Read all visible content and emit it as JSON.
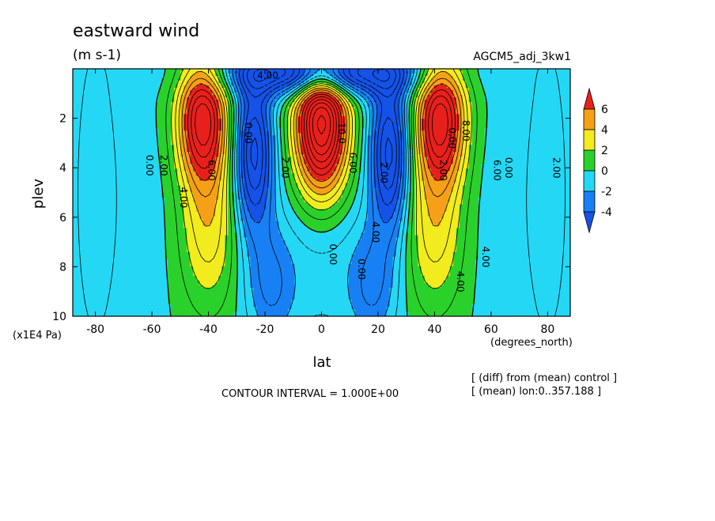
{
  "chart_data": {
    "type": "heatmap",
    "title": "eastward wind",
    "units": "(m s-1)",
    "run_label": "AGCM5_adj_3kw1",
    "xlabel": "lat",
    "xunits": "(degrees_north)",
    "ylabel": "plev",
    "yunits": "(x1E4 Pa)",
    "xlim": [
      -88,
      88
    ],
    "ylim": [
      10,
      0
    ],
    "x_ticks": [
      "-80",
      "-60",
      "-40",
      "-20",
      "0",
      "20",
      "40",
      "60",
      "80"
    ],
    "y_ticks": [
      "2",
      "4",
      "6",
      "8",
      "10"
    ],
    "colorbar": {
      "levels": [
        "6",
        "4",
        "2",
        "0",
        "-2",
        "-4"
      ],
      "colors": [
        "#e8201c",
        "#f5a016",
        "#f2ec1e",
        "#2bd12b",
        "#24d8f5",
        "#1880f5",
        "#1552e8"
      ]
    },
    "contour_interval_text": "CONTOUR INTERVAL = 1.000E+00",
    "notes": [
      "[ (diff) from (mean) control ]",
      "[ (mean) lon:0..357.188 ]"
    ],
    "contour_labels": [
      "0.00",
      "2.00",
      "4.00",
      "6.00",
      "0.00",
      "2.00",
      "4.00",
      "6.00",
      "0.00",
      "2.00",
      "4.00",
      "0.00",
      "2.00",
      "4.00",
      "6.00",
      "8.00",
      "0.00",
      "10.0",
      "0.00",
      "2.00",
      "4.00"
    ],
    "features": [
      {
        "name": "subtropical jet core south",
        "lat": -42,
        "plev": 2.0,
        "value": 9
      },
      {
        "name": "subtropical jet core north",
        "lat": 42,
        "plev": 2.0,
        "value": 9
      },
      {
        "name": "equatorial westerly core",
        "lat": 0,
        "plev": 2.2,
        "value": 12
      },
      {
        "name": "easterly band south",
        "lat": -24,
        "plev": 3.2,
        "value": -7
      },
      {
        "name": "easterly band north",
        "lat": 24,
        "plev": 3.2,
        "value": -7
      },
      {
        "name": "upper easterly cap",
        "lat": 0,
        "plev": 0.3,
        "value": -8
      }
    ]
  }
}
